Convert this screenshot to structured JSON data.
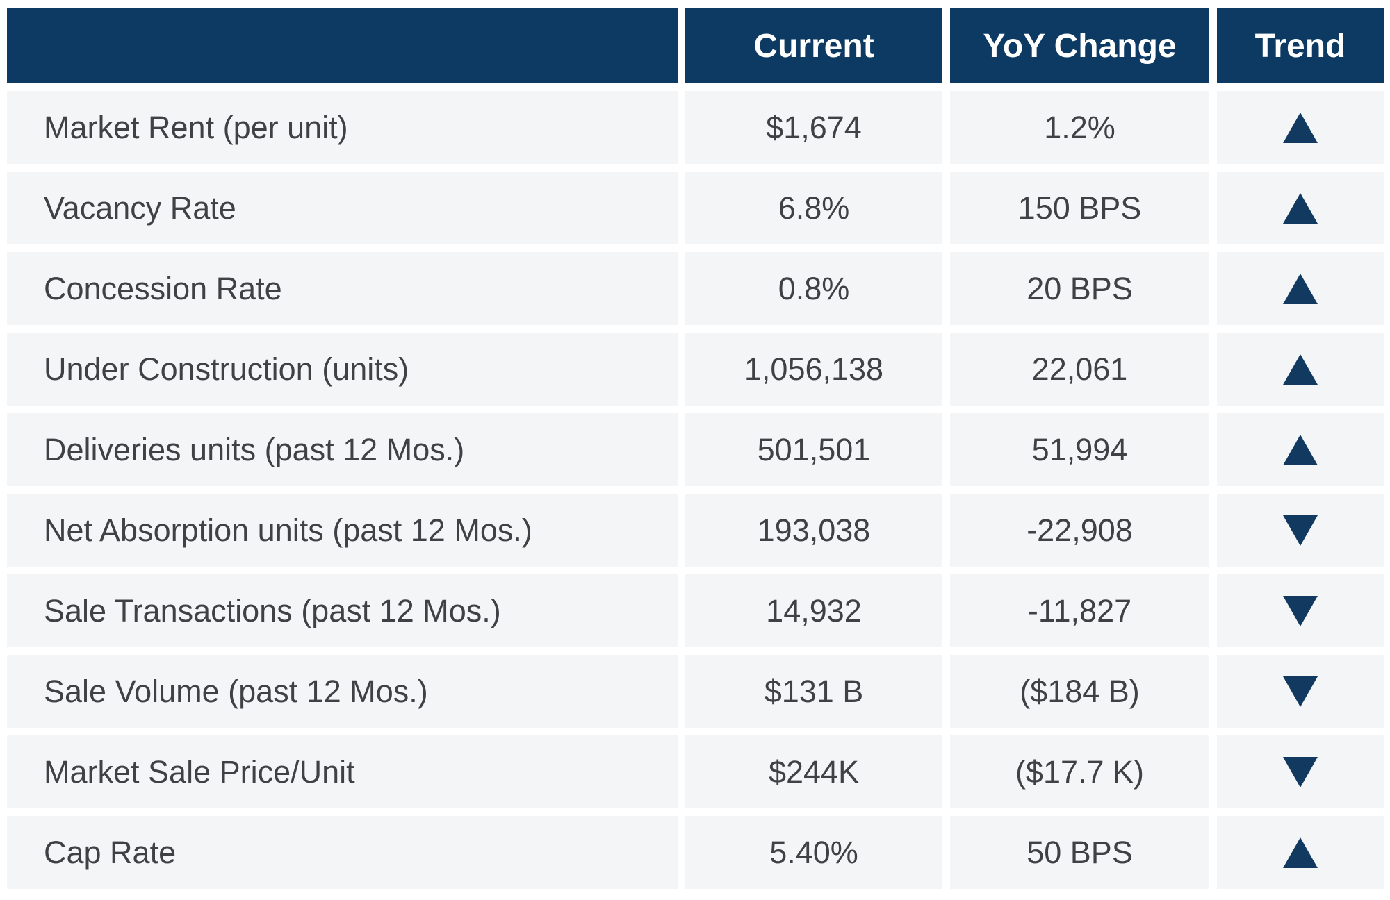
{
  "colors": {
    "page_bg": "#ffffff",
    "header_bg": "#0d3a63",
    "header_text": "#ffffff",
    "row_bg": "#f4f5f7",
    "body_text": "#3f4145",
    "trend": "#12395f"
  },
  "chart_data": {
    "type": "table",
    "columns": [
      "",
      "Current",
      "YoY Change",
      "Trend"
    ],
    "rows": [
      {
        "label": "Market Rent (per unit)",
        "current": "$1,674",
        "yoy": "1.2%",
        "trend": "up",
        "trend_icon": "triangle-up-icon"
      },
      {
        "label": "Vacancy Rate",
        "current": "6.8%",
        "yoy": "150 BPS",
        "trend": "up",
        "trend_icon": "triangle-up-icon"
      },
      {
        "label": "Concession Rate",
        "current": "0.8%",
        "yoy": "20 BPS",
        "trend": "up",
        "trend_icon": "triangle-up-icon"
      },
      {
        "label": "Under Construction (units)",
        "current": "1,056,138",
        "yoy": "22,061",
        "trend": "up",
        "trend_icon": "triangle-up-icon"
      },
      {
        "label": "Deliveries units (past 12 Mos.)",
        "current": "501,501",
        "yoy": "51,994",
        "trend": "up",
        "trend_icon": "triangle-up-icon"
      },
      {
        "label": "Net Absorption units (past 12 Mos.)",
        "current": "193,038",
        "yoy": "-22,908",
        "trend": "down",
        "trend_icon": "triangle-down-icon"
      },
      {
        "label": "Sale Transactions (past 12 Mos.)",
        "current": "14,932",
        "yoy": "-11,827",
        "trend": "down",
        "trend_icon": "triangle-down-icon"
      },
      {
        "label": "Sale Volume (past 12 Mos.)",
        "current": "$131 B",
        "yoy": "($184 B)",
        "trend": "down",
        "trend_icon": "triangle-down-icon"
      },
      {
        "label": "Market Sale Price/Unit",
        "current": "$244K",
        "yoy": "($17.7 K)",
        "trend": "down",
        "trend_icon": "triangle-down-icon"
      },
      {
        "label": "Cap Rate",
        "current": "5.40%",
        "yoy": "50 BPS",
        "trend": "up",
        "trend_icon": "triangle-up-icon"
      }
    ]
  }
}
